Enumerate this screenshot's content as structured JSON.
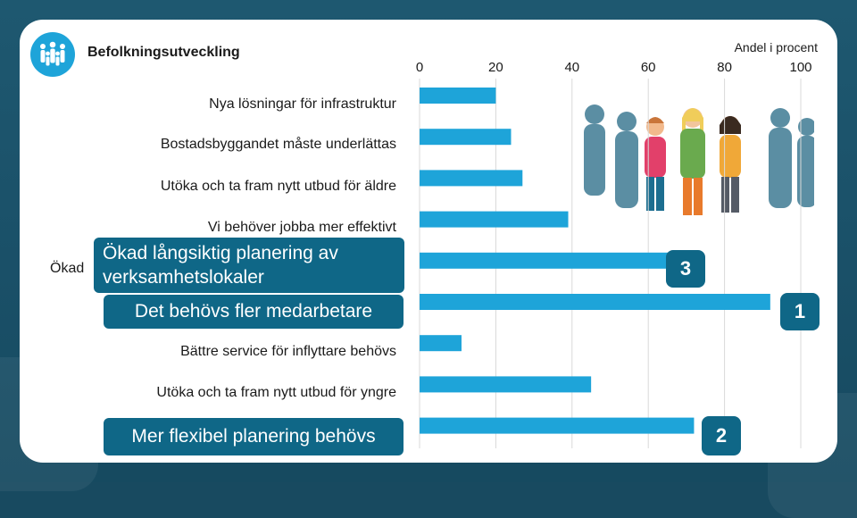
{
  "slide": {
    "title": "Befolkningsutveckling",
    "axis_caption": "Andel i procent"
  },
  "chart_data": {
    "type": "bar",
    "orientation": "horizontal",
    "xlim": [
      0,
      100
    ],
    "x_ticks": [
      "0",
      "20",
      "40",
      "60",
      "80",
      "100"
    ],
    "grid": true,
    "categories": [
      "Nya lösningar för infrastruktur",
      "Bostadsbyggandet måste underlättas",
      "Utöka och ta fram nytt utbud för äldre",
      "Vi behöver jobba mer effektivt",
      "Ökad långsiktig planering av verksamhetslokaler",
      "Det behövs fler medarbetare",
      "Bättre service för inflyttare behövs",
      "Utöka och ta fram nytt utbud för yngre",
      "Mer flexibel planering behövs"
    ],
    "values": [
      20,
      24,
      27,
      39,
      70,
      92,
      11,
      45,
      72
    ],
    "bar_color": "#1ea4d9"
  },
  "labels": {
    "cat0": "Nya lösningar för infrastruktur",
    "cat1": "Bostadsbyggandet måste underlättas",
    "cat2": "Utöka och ta fram nytt utbud för äldre",
    "cat3": "Vi behöver jobba mer effektivt",
    "cat4_prefix": "Ökad",
    "cat4_line1": "Ökad långsiktig planering av",
    "cat4_line2": "verksamhetslokaler",
    "cat5": "Det behövs fler medarbetare",
    "cat6": "Bättre service för inflyttare behövs",
    "cat7": "Utöka och ta fram nytt utbud för yngre",
    "cat8": "Mer flexibel planering behövs"
  },
  "rank_badges": {
    "first": "1",
    "second": "2",
    "third": "3"
  },
  "colors": {
    "accent": "#1ea4d9",
    "callout": "#0f6787",
    "silhouette": "#5b8ea3"
  },
  "icons": {
    "logo": "people-group-icon",
    "illustration": "crowd-people-illustration"
  }
}
